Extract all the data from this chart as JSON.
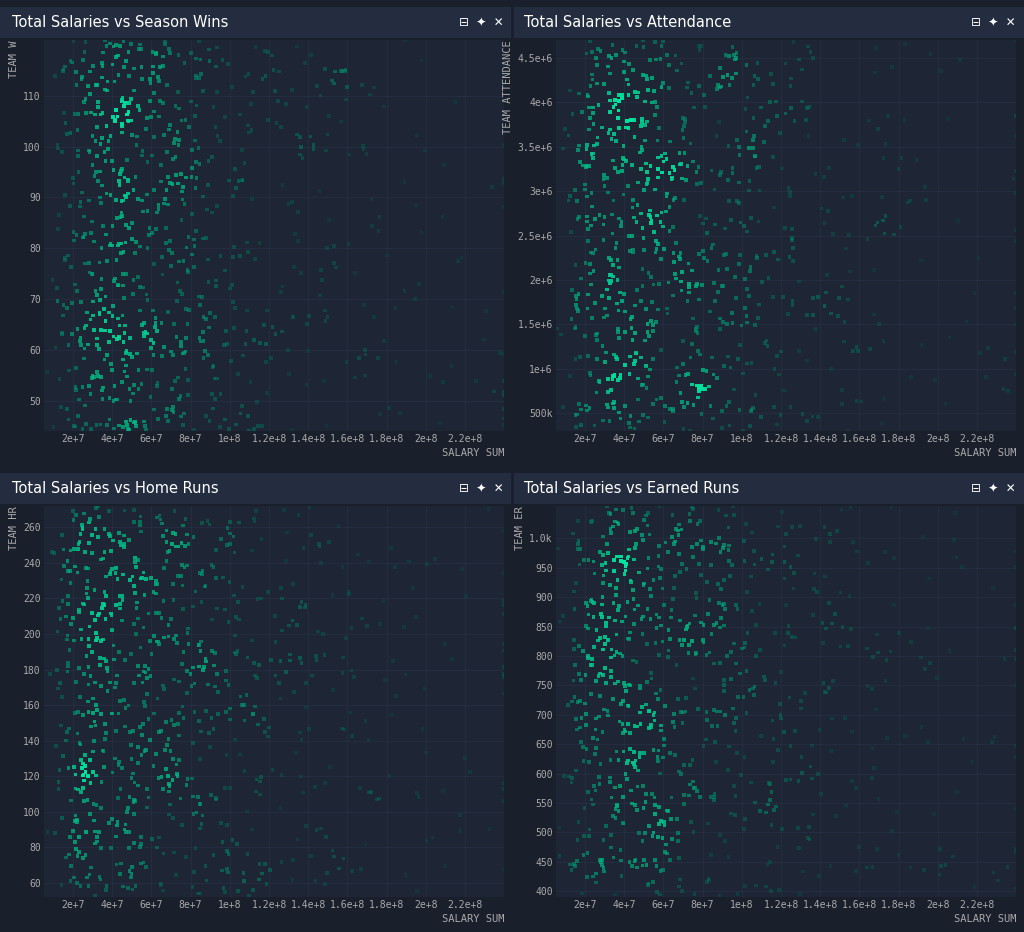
{
  "background_color": "#1a1f2c",
  "panel_bg": "#1e2535",
  "header_bg": "#242d3f",
  "text_color": "#ffffff",
  "tick_color": "#aaaaaa",
  "grid_color": "#2a3347",
  "title_fontsize": 10.5,
  "label_fontsize": 7.5,
  "tick_fontsize": 7,
  "plots": [
    {
      "title": "Total Salaries vs Season Wins",
      "xlabel": "SALARY SUM",
      "ylabel": "TEAM W",
      "xlim": [
        5000000,
        240000000
      ],
      "ylim": [
        44,
        121
      ],
      "yticks": [
        50,
        60,
        70,
        80,
        90,
        100,
        110
      ],
      "ytick_labels": [
        "50",
        "60",
        "70",
        "80",
        "90",
        "100",
        "110"
      ],
      "xticks": [
        20000000,
        40000000,
        60000000,
        80000000,
        100000000,
        120000000,
        140000000,
        160000000,
        180000000,
        200000000,
        220000000
      ],
      "xtick_labels": [
        "2e+7",
        "4e+7",
        "6e+7",
        "8e+7",
        "1e+8",
        "1.2e+8",
        "1.4e+8",
        "1.6e+8",
        "1.8e+8",
        "2e+8",
        "2.2e+8"
      ],
      "n_points": 800,
      "seed": 10
    },
    {
      "title": "Total Salaries vs Attendance",
      "xlabel": "SALARY SUM",
      "ylabel": "TEAM ATTENDANCE",
      "xlim": [
        5000000,
        240000000
      ],
      "ylim": [
        300000,
        4700000
      ],
      "yticks": [
        500000,
        1000000,
        1500000,
        2000000,
        2500000,
        3000000,
        3500000,
        4000000,
        4500000
      ],
      "ytick_labels": [
        "500k",
        "1e+6",
        "1.5e+6",
        "2e+6",
        "2.5e+6",
        "3e+6",
        "3.5e+6",
        "4e+6",
        "4.5e+6"
      ],
      "xticks": [
        20000000,
        40000000,
        60000000,
        80000000,
        100000000,
        120000000,
        140000000,
        160000000,
        180000000,
        200000000,
        220000000
      ],
      "xtick_labels": [
        "2e+7",
        "4e+7",
        "6e+7",
        "8e+7",
        "1e+8",
        "1.2e+8",
        "1.4e+8",
        "1.6e+8",
        "1.8e+8",
        "2e+8",
        "2.2e+8"
      ],
      "n_points": 800,
      "seed": 20
    },
    {
      "title": "Total Salaries vs Home Runs",
      "xlabel": "SALARY SUM",
      "ylabel": "TEAM HR",
      "xlim": [
        5000000,
        240000000
      ],
      "ylim": [
        52,
        272
      ],
      "yticks": [
        60,
        80,
        100,
        120,
        140,
        160,
        180,
        200,
        220,
        240,
        260
      ],
      "ytick_labels": [
        "60",
        "80",
        "100",
        "120",
        "140",
        "160",
        "180",
        "200",
        "220",
        "240",
        "260"
      ],
      "xticks": [
        20000000,
        40000000,
        60000000,
        80000000,
        100000000,
        120000000,
        140000000,
        160000000,
        180000000,
        200000000,
        220000000
      ],
      "xtick_labels": [
        "2e+7",
        "4e+7",
        "6e+7",
        "8e+7",
        "1e+8",
        "1.2e+8",
        "1.4e+8",
        "1.6e+8",
        "1.8e+8",
        "2e+8",
        "2.2e+8"
      ],
      "n_points": 800,
      "seed": 30
    },
    {
      "title": "Total Salaries vs Earned Runs",
      "xlabel": "SALARY SUM",
      "ylabel": "TEAM ER",
      "xlim": [
        5000000,
        240000000
      ],
      "ylim": [
        390,
        1055
      ],
      "yticks": [
        400,
        450,
        500,
        550,
        600,
        650,
        700,
        750,
        800,
        850,
        900,
        950,
        1000
      ],
      "ytick_labels": [
        "400",
        "450",
        "500",
        "550",
        "600",
        "650",
        "700",
        "750",
        "800",
        "850",
        "900",
        "950",
        "1.0k"
      ],
      "xticks": [
        20000000,
        40000000,
        60000000,
        80000000,
        100000000,
        120000000,
        140000000,
        160000000,
        180000000,
        200000000,
        220000000
      ],
      "xtick_labels": [
        "2e+7",
        "4e+7",
        "6e+7",
        "8e+7",
        "1e+8",
        "1.2e+8",
        "1.4e+8",
        "1.6e+8",
        "1.8e+8",
        "2e+8",
        "2.2e+8"
      ],
      "n_points": 800,
      "seed": 40
    }
  ]
}
